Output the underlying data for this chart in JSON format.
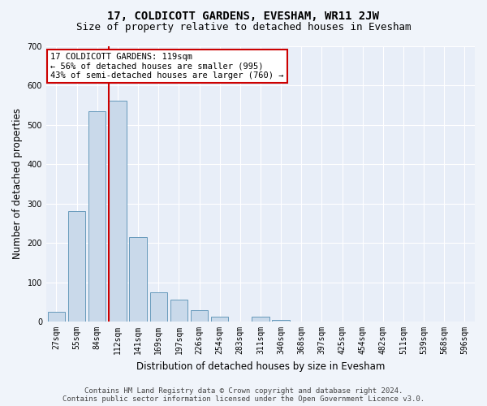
{
  "title": "17, COLDICOTT GARDENS, EVESHAM, WR11 2JW",
  "subtitle": "Size of property relative to detached houses in Evesham",
  "xlabel": "Distribution of detached houses by size in Evesham",
  "ylabel": "Number of detached properties",
  "annotation_line1": "17 COLDICOTT GARDENS: 119sqm",
  "annotation_line2": "← 56% of detached houses are smaller (995)",
  "annotation_line3": "43% of semi-detached houses are larger (760) →",
  "footer1": "Contains HM Land Registry data © Crown copyright and database right 2024.",
  "footer2": "Contains public sector information licensed under the Open Government Licence v3.0.",
  "categories": [
    "27sqm",
    "55sqm",
    "84sqm",
    "112sqm",
    "141sqm",
    "169sqm",
    "197sqm",
    "226sqm",
    "254sqm",
    "283sqm",
    "311sqm",
    "340sqm",
    "368sqm",
    "397sqm",
    "425sqm",
    "454sqm",
    "482sqm",
    "511sqm",
    "539sqm",
    "568sqm",
    "596sqm"
  ],
  "values": [
    25,
    280,
    535,
    560,
    215,
    75,
    55,
    30,
    12,
    0,
    12,
    5,
    0,
    0,
    0,
    0,
    0,
    0,
    0,
    0,
    0
  ],
  "bar_color": "#c9d9ea",
  "bar_edge_color": "#6699bb",
  "red_line_x": 2.575,
  "ylim": [
    0,
    700
  ],
  "yticks": [
    0,
    100,
    200,
    300,
    400,
    500,
    600,
    700
  ],
  "background_color": "#f0f4fa",
  "plot_bg_color": "#e8eef8",
  "grid_color": "#ffffff",
  "red_line_color": "#cc0000",
  "annotation_box_color": "#ffffff",
  "annotation_box_edge": "#cc0000",
  "title_fontsize": 10,
  "subtitle_fontsize": 9,
  "axis_label_fontsize": 8.5,
  "tick_fontsize": 7,
  "annotation_fontsize": 7.5,
  "footer_fontsize": 6.5
}
